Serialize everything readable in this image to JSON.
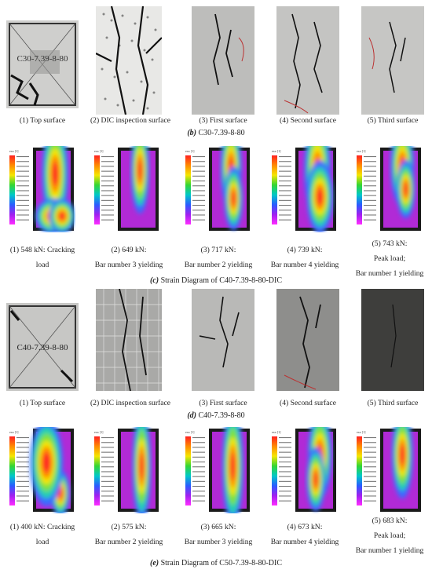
{
  "row1": {
    "captions": [
      "(1) Top surface",
      "(2) DIC inspection surface",
      "(3) First surface",
      "(4) Second surface",
      "(5) Third surface"
    ],
    "figure_letter": "(b)",
    "figure_title": "C30-7.39-8-80",
    "specimen_label": "C30-7.39-8-80"
  },
  "row2": {
    "captions": [
      [
        "(1) 548 kN: Cracking",
        "load"
      ],
      [
        "(2) 649 kN:",
        "Bar number 3 yielding"
      ],
      [
        "(3) 717 kN:",
        "Bar number 2 yielding"
      ],
      [
        "(4) 739 kN:",
        "Bar number 4 yielding"
      ],
      [
        "(5) 743 kN:",
        "Peak load;",
        "Bar number 1 yielding"
      ]
    ],
    "figure_letter": "(c)",
    "figure_title": "Strain Diagram of C40-7.39-8-80-DIC"
  },
  "row3": {
    "captions": [
      "(1) Top surface",
      "(2) DIC inspection surface",
      "(3) First surface",
      "(4) Second surface",
      "(5) Third surface"
    ],
    "figure_letter": "(d)",
    "figure_title": "C40-7.39-8-80",
    "specimen_label": "C40-7.39-8-80"
  },
  "row4": {
    "captions": [
      [
        "(1) 400 kN: Cracking",
        "load"
      ],
      [
        "(2) 575 kN:",
        "Bar number 2 yielding"
      ],
      [
        "(3) 665 kN:",
        "Bar number 3 yielding"
      ],
      [
        "(4) 673 kN:",
        "Bar number 4 yielding"
      ],
      [
        "(5) 683 kN:",
        "Peak load;",
        "Bar number 1 yielding"
      ]
    ],
    "figure_letter": "(e)",
    "figure_title": "Strain Diagram of C50-7.39-8-80-DIC"
  },
  "legend_title": "exx [1]"
}
